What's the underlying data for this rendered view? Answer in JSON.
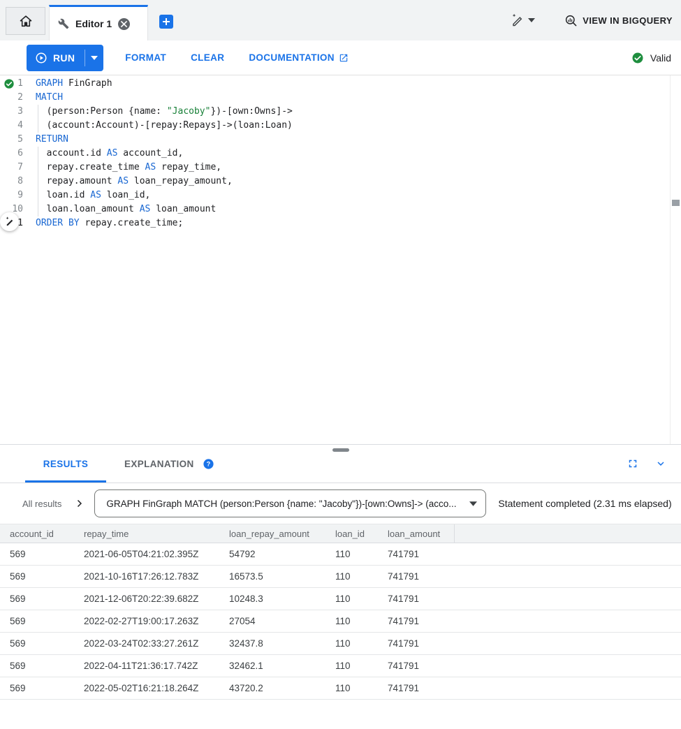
{
  "tabbar": {
    "editor_tab_label": "Editor 1"
  },
  "topbar": {
    "view_in_bigquery_label": "VIEW IN BIGQUERY"
  },
  "toolbar": {
    "run_label": "RUN",
    "format_label": "FORMAT",
    "clear_label": "CLEAR",
    "documentation_label": "DOCUMENTATION",
    "valid_label": "Valid"
  },
  "editor": {
    "lines": [
      {
        "n": 1,
        "ind": false,
        "segs": [
          {
            "c": "kw",
            "t": "GRAPH"
          },
          {
            "c": "pl",
            "t": " FinGraph"
          }
        ]
      },
      {
        "n": 2,
        "ind": false,
        "segs": [
          {
            "c": "kw",
            "t": "MATCH"
          }
        ]
      },
      {
        "n": 3,
        "ind": true,
        "segs": [
          {
            "c": "pl",
            "t": "  (person:Person {name: "
          },
          {
            "c": "str",
            "t": "\"Jacoby\""
          },
          {
            "c": "pl",
            "t": "})-[own:Owns]->"
          }
        ]
      },
      {
        "n": 4,
        "ind": true,
        "segs": [
          {
            "c": "pl",
            "t": "  (account:Account)-[repay:Repays]->(loan:Loan)"
          }
        ]
      },
      {
        "n": 5,
        "ind": false,
        "segs": [
          {
            "c": "kw",
            "t": "RETURN"
          }
        ]
      },
      {
        "n": 6,
        "ind": true,
        "segs": [
          {
            "c": "pl",
            "t": "  account.id "
          },
          {
            "c": "kw",
            "t": "AS"
          },
          {
            "c": "pl",
            "t": " account_id,"
          }
        ]
      },
      {
        "n": 7,
        "ind": true,
        "segs": [
          {
            "c": "pl",
            "t": "  repay.create_time "
          },
          {
            "c": "kw",
            "t": "AS"
          },
          {
            "c": "pl",
            "t": " repay_time,"
          }
        ]
      },
      {
        "n": 8,
        "ind": true,
        "segs": [
          {
            "c": "pl",
            "t": "  repay.amount "
          },
          {
            "c": "kw",
            "t": "AS"
          },
          {
            "c": "pl",
            "t": " loan_repay_amount,"
          }
        ]
      },
      {
        "n": 9,
        "ind": true,
        "segs": [
          {
            "c": "pl",
            "t": "  loan.id "
          },
          {
            "c": "kw",
            "t": "AS"
          },
          {
            "c": "pl",
            "t": " loan_id,"
          }
        ]
      },
      {
        "n": 10,
        "ind": true,
        "segs": [
          {
            "c": "pl",
            "t": "  loan.loan_amount "
          },
          {
            "c": "kw",
            "t": "AS"
          },
          {
            "c": "pl",
            "t": " loan_amount"
          }
        ]
      },
      {
        "n": 11,
        "ind": false,
        "active": true,
        "segs": [
          {
            "c": "kw",
            "t": "ORDER BY"
          },
          {
            "c": "pl",
            "t": " repay.create_time;"
          }
        ]
      }
    ]
  },
  "results": {
    "tab_results": "RESULTS",
    "tab_explanation": "EXPLANATION",
    "all_results_label": "All results",
    "query_dropdown_text": "GRAPH FinGraph MATCH (person:Person {name: \"Jacoby\"})-[own:Owns]-> (acco...",
    "statement_status": "Statement completed (2.31 ms elapsed)"
  },
  "table": {
    "columns": [
      "account_id",
      "repay_time",
      "loan_repay_amount",
      "loan_id",
      "loan_amount"
    ],
    "rows": [
      [
        "569",
        "2021-06-05T04:21:02.395Z",
        "54792",
        "110",
        "741791"
      ],
      [
        "569",
        "2021-10-16T17:26:12.783Z",
        "16573.5",
        "110",
        "741791"
      ],
      [
        "569",
        "2021-12-06T20:22:39.682Z",
        "10248.3",
        "110",
        "741791"
      ],
      [
        "569",
        "2022-02-27T19:00:17.263Z",
        "27054",
        "110",
        "741791"
      ],
      [
        "569",
        "2022-03-24T02:33:27.261Z",
        "32437.8",
        "110",
        "741791"
      ],
      [
        "569",
        "2022-04-11T21:36:17.742Z",
        "32462.1",
        "110",
        "741791"
      ],
      [
        "569",
        "2022-05-02T16:21:18.264Z",
        "43720.2",
        "110",
        "741791"
      ]
    ]
  },
  "icons": [
    "home-icon",
    "build-wrench-icon",
    "close-icon",
    "add-tab-icon",
    "magic-pen-icon",
    "caret-down-icon",
    "bigquery-magnifier-icon",
    "play-circle-icon",
    "external-link-icon",
    "check-circle-icon",
    "help-icon",
    "fullscreen-icon",
    "chevron-down-icon",
    "chevron-right-icon",
    "dropdown-caret-icon"
  ],
  "colors": {
    "accent_blue": "#1a73e8",
    "keyword_blue": "#1967d2",
    "string_green": "#188038",
    "valid_green": "#1e8e3e",
    "bar_gray": "#f1f3f4",
    "text_dark": "#202124",
    "text_gray": "#5f6368"
  }
}
